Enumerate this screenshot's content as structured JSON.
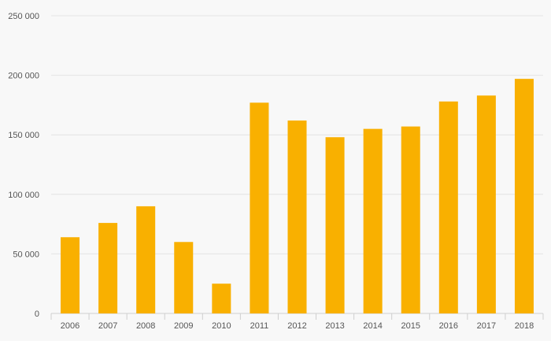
{
  "chart_data": {
    "type": "bar",
    "title": "",
    "xlabel": "",
    "ylabel": "",
    "categories": [
      "2006",
      "2007",
      "2008",
      "2009",
      "2010",
      "2011",
      "2012",
      "2013",
      "2014",
      "2015",
      "2016",
      "2017",
      "2018"
    ],
    "values": [
      64000,
      76000,
      90000,
      60000,
      25000,
      177000,
      162000,
      148000,
      155000,
      157000,
      178000,
      183000,
      197000
    ],
    "ylim": [
      0,
      250000
    ],
    "yticks": [
      0,
      50000,
      100000,
      150000,
      200000,
      250000
    ],
    "ytick_labels": [
      "0",
      "50 000",
      "100 000",
      "150 000",
      "200 000",
      "250 000"
    ],
    "grid": true,
    "legend": "none",
    "bar_color": "#f9b000"
  }
}
